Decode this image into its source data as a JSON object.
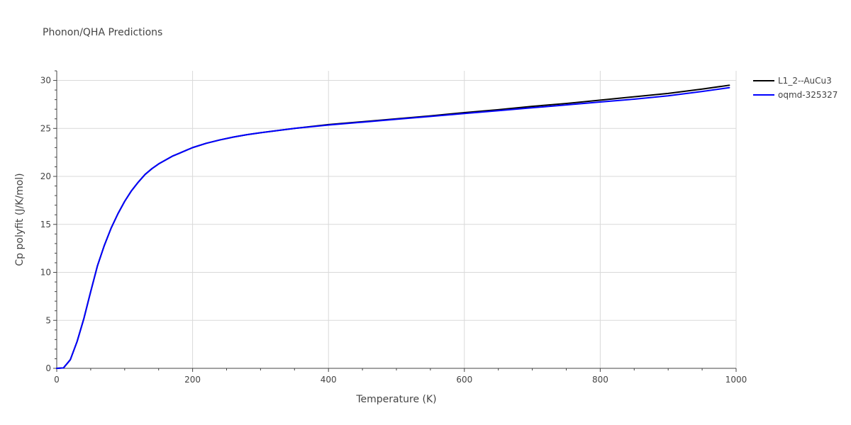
{
  "chart_data": {
    "type": "line",
    "title": "Phonon/QHA Predictions",
    "xlabel": "Temperature (K)",
    "ylabel": "Cp polyfit (J/K/mol)",
    "xlim": [
      0,
      1000
    ],
    "ylim": [
      0,
      31
    ],
    "x_ticks": [
      0,
      200,
      400,
      600,
      800,
      1000
    ],
    "y_ticks": [
      0,
      5,
      10,
      15,
      20,
      25,
      30
    ],
    "grid": true,
    "legend_position": "top-right",
    "series": [
      {
        "name": "L1_2--AuCu3",
        "color": "#000000",
        "x": [
          0,
          10,
          20,
          30,
          40,
          50,
          60,
          70,
          80,
          90,
          100,
          110,
          120,
          130,
          140,
          150,
          160,
          170,
          180,
          190,
          200,
          220,
          240,
          260,
          280,
          300,
          350,
          400,
          450,
          500,
          550,
          600,
          650,
          700,
          750,
          800,
          850,
          900,
          950,
          990
        ],
        "y": [
          0,
          0.05,
          0.9,
          2.8,
          5.2,
          8.0,
          10.7,
          12.8,
          14.6,
          16.1,
          17.4,
          18.5,
          19.4,
          20.2,
          20.8,
          21.3,
          21.7,
          22.1,
          22.4,
          22.7,
          23.0,
          23.45,
          23.8,
          24.1,
          24.35,
          24.55,
          25.0,
          25.4,
          25.7,
          26.0,
          26.3,
          26.65,
          26.95,
          27.3,
          27.6,
          27.95,
          28.3,
          28.65,
          29.1,
          29.5
        ]
      },
      {
        "name": "oqmd-325327",
        "color": "#0000ff",
        "x": [
          0,
          10,
          20,
          30,
          40,
          50,
          60,
          70,
          80,
          90,
          100,
          110,
          120,
          130,
          140,
          150,
          160,
          170,
          180,
          190,
          200,
          220,
          240,
          260,
          280,
          300,
          350,
          400,
          450,
          500,
          550,
          600,
          650,
          700,
          750,
          800,
          850,
          900,
          950,
          990
        ],
        "y": [
          0,
          0.05,
          0.9,
          2.8,
          5.2,
          8.0,
          10.7,
          12.8,
          14.6,
          16.1,
          17.4,
          18.5,
          19.4,
          20.2,
          20.8,
          21.3,
          21.7,
          22.1,
          22.4,
          22.7,
          23.0,
          23.45,
          23.8,
          24.1,
          24.35,
          24.55,
          25.0,
          25.35,
          25.65,
          25.95,
          26.25,
          26.55,
          26.85,
          27.15,
          27.45,
          27.75,
          28.05,
          28.4,
          28.85,
          29.25
        ]
      }
    ]
  }
}
